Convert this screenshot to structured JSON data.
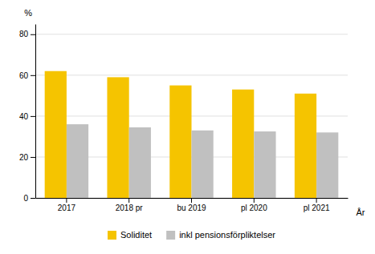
{
  "chart_data": {
    "type": "bar",
    "categories": [
      "2017",
      "2018 pr",
      "bu 2019",
      "pl 2020",
      "pl 2021"
    ],
    "series": [
      {
        "name": "Soliditet",
        "color": "#F5C400",
        "values": [
          62,
          59,
          55,
          53,
          51
        ]
      },
      {
        "name": "inkl pensionsförpliktelser",
        "color": "#C0C0C0",
        "values": [
          36,
          34.5,
          33,
          32.5,
          32
        ]
      }
    ],
    "ylabel": "%",
    "xlabel": "År",
    "ylim": [
      0,
      85
    ],
    "yticks": [
      0,
      20,
      40,
      60,
      80
    ],
    "grid": true,
    "legend": "bottom"
  }
}
